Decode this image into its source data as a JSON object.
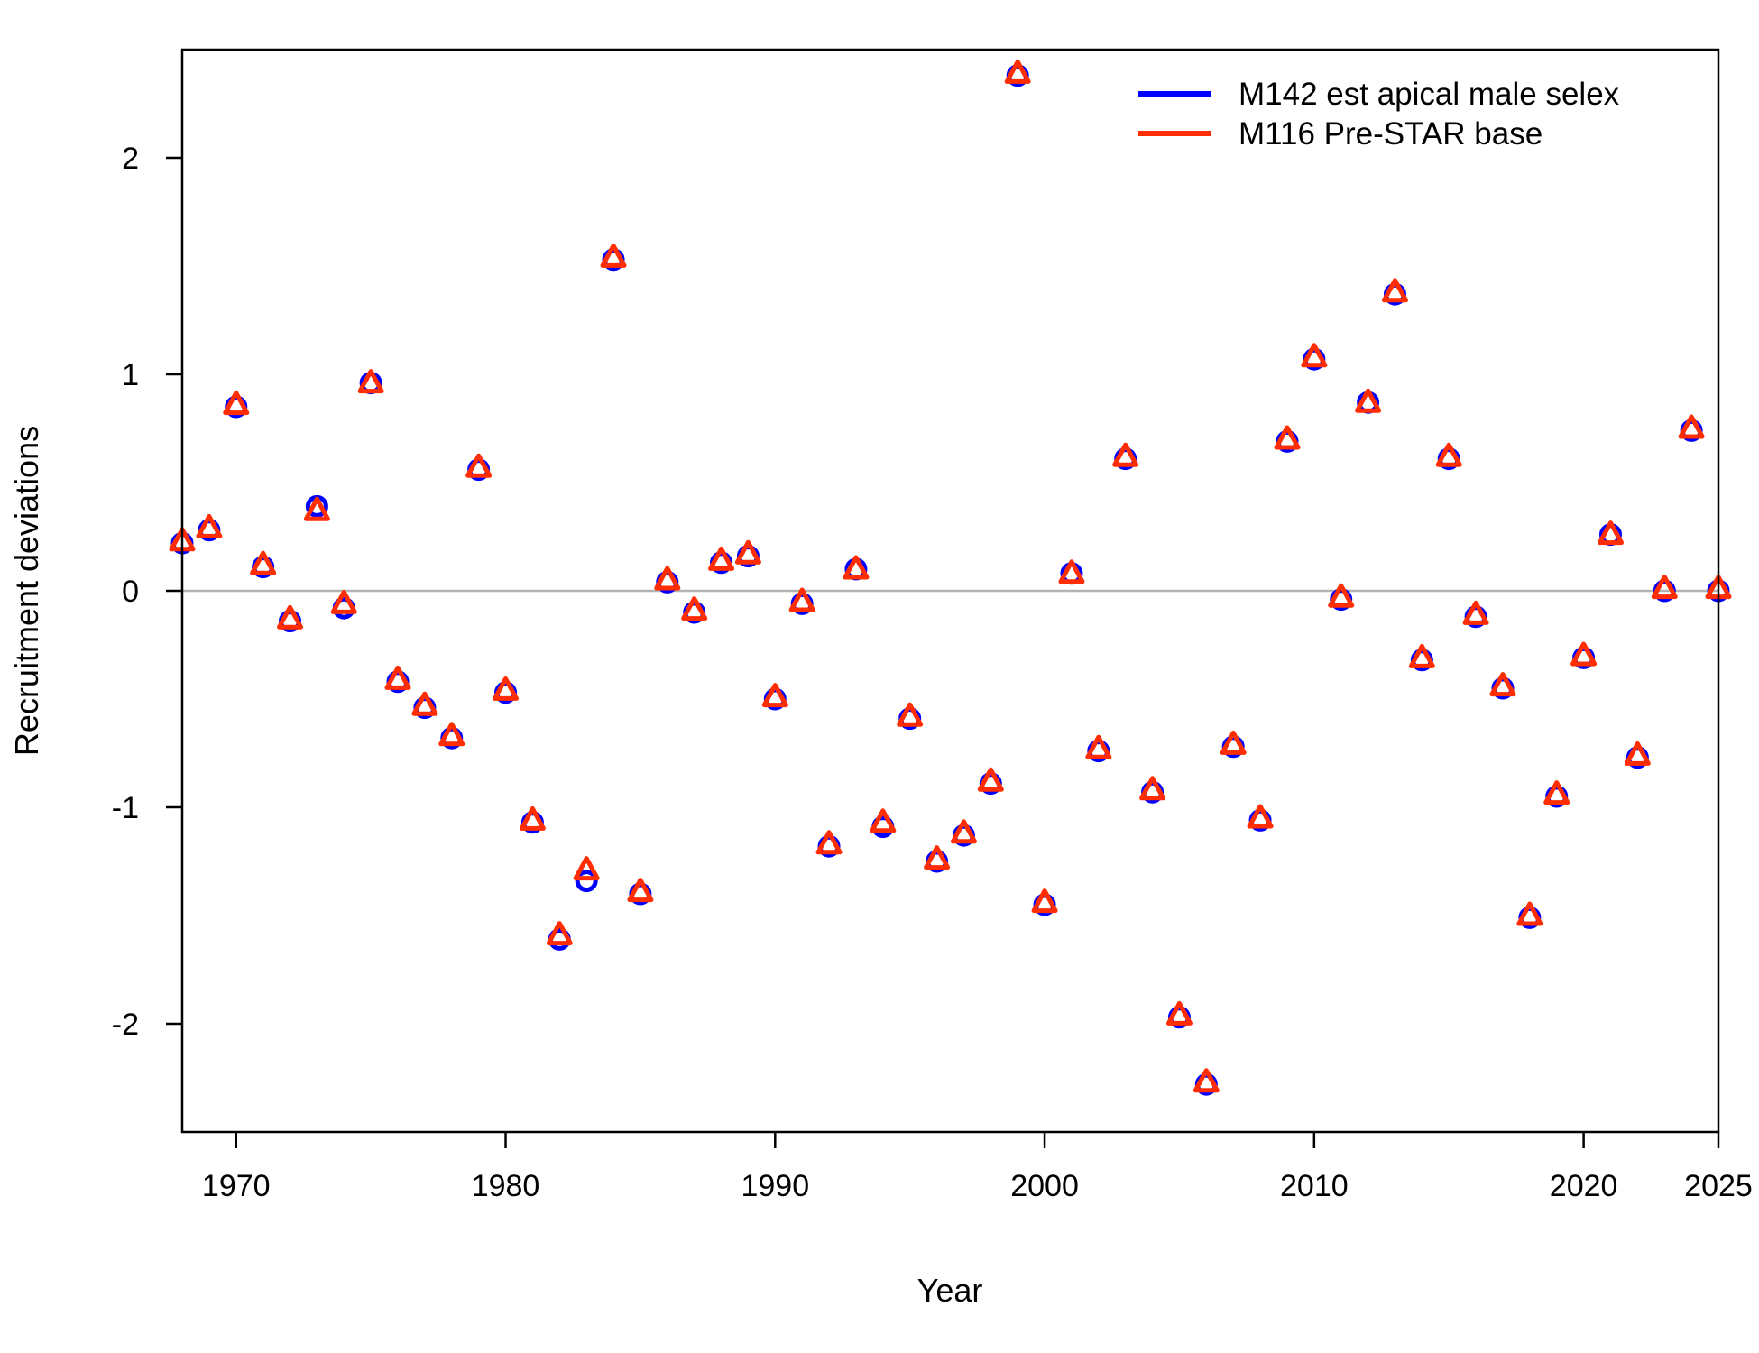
{
  "chart_data": {
    "type": "scatter",
    "title": "",
    "xlabel": "Year",
    "ylabel": "Recruitment deviations",
    "xlim": [
      1968,
      2025
    ],
    "ylim": [
      -2.5,
      2.5
    ],
    "xticks": [
      1970,
      1980,
      1990,
      2000,
      2010,
      2020,
      2025
    ],
    "yticks": [
      -2,
      -1,
      0,
      1,
      2
    ],
    "reference_line_y": 0,
    "legend_position": "top-right",
    "series": [
      {
        "name": "M142 est apical male selex",
        "color": "#0000ff",
        "marker": "circle",
        "x": [
          1968,
          1969,
          1970,
          1971,
          1972,
          1973,
          1974,
          1975,
          1976,
          1977,
          1978,
          1979,
          1980,
          1981,
          1982,
          1983,
          1984,
          1985,
          1986,
          1987,
          1988,
          1989,
          1990,
          1991,
          1992,
          1993,
          1994,
          1995,
          1996,
          1997,
          1998,
          1999,
          2000,
          2001,
          2002,
          2003,
          2004,
          2005,
          2006,
          2007,
          2008,
          2009,
          2010,
          2011,
          2012,
          2013,
          2014,
          2015,
          2016,
          2017,
          2018,
          2019,
          2020,
          2021,
          2022,
          2023,
          2024,
          2025
        ],
        "y": [
          0.22,
          0.28,
          0.85,
          0.11,
          -0.14,
          0.39,
          -0.08,
          0.96,
          -0.42,
          -0.54,
          -0.68,
          0.56,
          -0.47,
          -1.07,
          -1.61,
          -1.34,
          1.53,
          -1.4,
          0.04,
          -0.1,
          0.13,
          0.16,
          -0.5,
          -0.06,
          -1.18,
          0.1,
          -1.09,
          -0.59,
          -1.25,
          -1.13,
          -0.89,
          2.38,
          -1.45,
          0.08,
          -0.74,
          0.61,
          -0.93,
          -1.97,
          -2.28,
          -0.72,
          -1.06,
          0.69,
          1.07,
          -0.04,
          0.87,
          1.37,
          -0.32,
          0.61,
          -0.12,
          -0.45,
          -1.51,
          -0.95,
          -0.31,
          0.26,
          -0.77,
          0.0,
          0.74,
          0.0
        ]
      },
      {
        "name": "M116 Pre-STAR base",
        "color": "#ff2d00",
        "marker": "triangle",
        "x": [
          1968,
          1969,
          1970,
          1971,
          1972,
          1973,
          1974,
          1975,
          1976,
          1977,
          1978,
          1979,
          1980,
          1981,
          1982,
          1983,
          1984,
          1985,
          1986,
          1987,
          1988,
          1989,
          1990,
          1991,
          1992,
          1993,
          1994,
          1995,
          1996,
          1997,
          1998,
          1999,
          2000,
          2001,
          2002,
          2003,
          2004,
          2005,
          2006,
          2007,
          2008,
          2009,
          2010,
          2011,
          2012,
          2013,
          2014,
          2015,
          2016,
          2017,
          2018,
          2019,
          2020,
          2021,
          2022,
          2023,
          2024,
          2025
        ],
        "y": [
          0.23,
          0.29,
          0.86,
          0.12,
          -0.13,
          0.37,
          -0.06,
          0.96,
          -0.41,
          -0.53,
          -0.67,
          0.57,
          -0.46,
          -1.06,
          -1.59,
          -1.29,
          1.54,
          -1.39,
          0.05,
          -0.09,
          0.14,
          0.17,
          -0.49,
          -0.05,
          -1.17,
          0.1,
          -1.07,
          -0.58,
          -1.24,
          -1.12,
          -0.88,
          2.39,
          -1.44,
          0.08,
          -0.73,
          0.62,
          -0.92,
          -1.96,
          -2.27,
          -0.71,
          -1.05,
          0.7,
          1.08,
          -0.03,
          0.87,
          1.38,
          -0.31,
          0.62,
          -0.11,
          -0.44,
          -1.5,
          -0.94,
          -0.3,
          0.26,
          -0.76,
          0.01,
          0.75,
          0.01
        ]
      }
    ]
  }
}
